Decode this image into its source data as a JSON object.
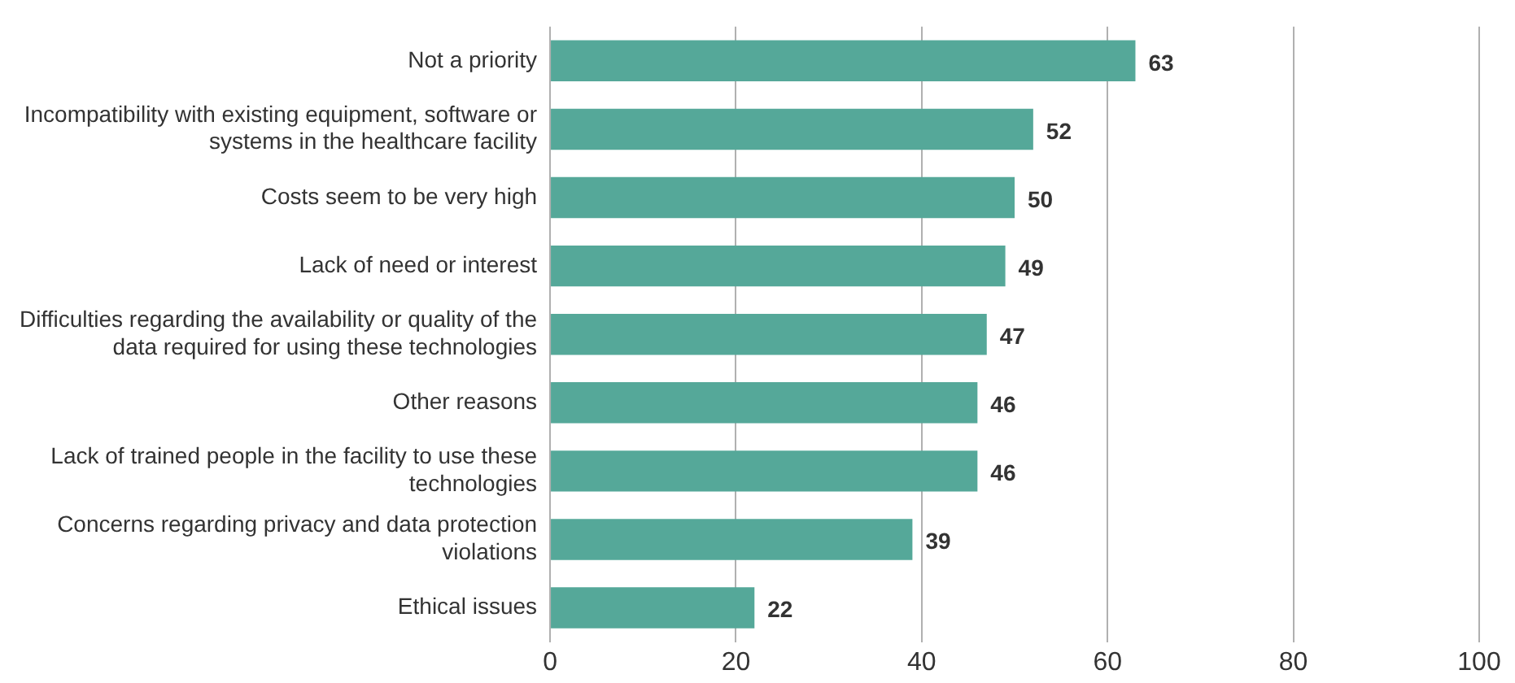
{
  "chart_data": {
    "type": "bar",
    "orientation": "horizontal",
    "categories": [
      "Not a priority",
      "Incompatibility with existing equipment, software or systems in the healthcare facility",
      "Costs seem to be very high",
      "Lack of need or interest",
      "Difficulties regarding the availability or quality of the data required for using these technologies",
      "Other reasons",
      "Lack of trained people in the facility to use these technologies",
      "Concerns regarding privacy and data protection violations",
      "Ethical issues"
    ],
    "values": [
      63,
      52,
      50,
      49,
      47,
      46,
      46,
      39,
      22
    ],
    "color": "#55a899",
    "xlim": [
      0,
      100
    ],
    "xticks": [
      0,
      20,
      40,
      60,
      80,
      100
    ],
    "grid": "x",
    "data_labels": true,
    "legend": false
  }
}
